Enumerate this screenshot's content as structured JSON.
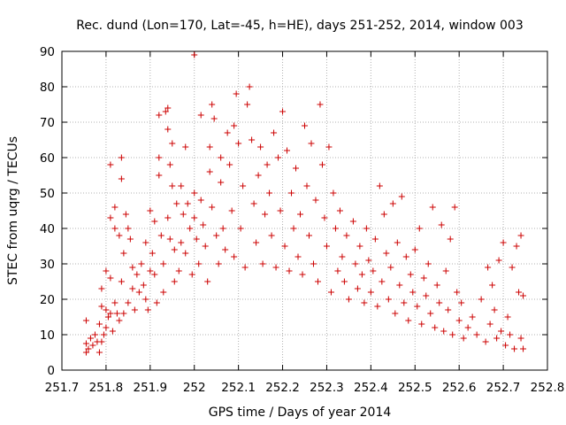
{
  "chart_data": {
    "type": "scatter",
    "title": "Rec. dund (Lon=170, Lat=-45, h=HE), days 251-252, 2014, window 003",
    "xlabel": "GPS time / Days of year 2014",
    "ylabel": "STEC from uqrg / TECUs",
    "xlim": [
      251.7,
      252.8
    ],
    "ylim": [
      0,
      90
    ],
    "xticks": [
      "251.7",
      "251.8",
      "251.9",
      "252",
      "252.1",
      "252.2",
      "252.3",
      "252.4",
      "252.5",
      "252.6",
      "252.7",
      "252.8"
    ],
    "yticks": [
      "0",
      "10",
      "20",
      "30",
      "40",
      "50",
      "60",
      "70",
      "80",
      "90"
    ],
    "grid": true,
    "marker": "+",
    "color": "#cc0000",
    "points": [
      [
        251.755,
        14
      ],
      [
        251.755,
        7.5
      ],
      [
        251.755,
        5
      ],
      [
        251.76,
        6
      ],
      [
        251.765,
        9
      ],
      [
        251.77,
        7
      ],
      [
        251.775,
        10
      ],
      [
        251.78,
        8
      ],
      [
        251.785,
        5
      ],
      [
        251.785,
        13
      ],
      [
        251.79,
        23
      ],
      [
        251.79,
        18
      ],
      [
        251.79,
        8
      ],
      [
        251.795,
        10
      ],
      [
        251.8,
        28
      ],
      [
        251.8,
        17
      ],
      [
        251.8,
        12
      ],
      [
        251.805,
        15
      ],
      [
        251.81,
        58
      ],
      [
        251.81,
        43
      ],
      [
        251.81,
        26
      ],
      [
        251.81,
        16
      ],
      [
        251.815,
        11
      ],
      [
        251.82,
        46
      ],
      [
        251.82,
        40
      ],
      [
        251.82,
        19
      ],
      [
        251.825,
        16
      ],
      [
        251.83,
        38
      ],
      [
        251.83,
        14
      ],
      [
        251.835,
        60
      ],
      [
        251.835,
        54
      ],
      [
        251.835,
        25
      ],
      [
        251.84,
        33
      ],
      [
        251.84,
        16
      ],
      [
        251.845,
        44
      ],
      [
        251.85,
        40
      ],
      [
        251.85,
        19
      ],
      [
        251.855,
        37
      ],
      [
        251.86,
        29
      ],
      [
        251.86,
        23
      ],
      [
        251.865,
        17
      ],
      [
        251.87,
        27
      ],
      [
        251.875,
        22
      ],
      [
        251.88,
        30
      ],
      [
        251.885,
        24
      ],
      [
        251.89,
        36
      ],
      [
        251.89,
        20
      ],
      [
        251.895,
        17
      ],
      [
        251.9,
        45
      ],
      [
        251.9,
        28
      ],
      [
        251.905,
        33
      ],
      [
        251.91,
        42
      ],
      [
        251.91,
        27
      ],
      [
        251.915,
        19
      ],
      [
        251.92,
        72
      ],
      [
        251.92,
        60
      ],
      [
        251.92,
        55
      ],
      [
        251.925,
        38
      ],
      [
        251.93,
        30
      ],
      [
        251.93,
        22
      ],
      [
        251.935,
        73
      ],
      [
        251.94,
        74
      ],
      [
        251.94,
        68
      ],
      [
        251.94,
        43
      ],
      [
        251.945,
        58
      ],
      [
        251.945,
        37
      ],
      [
        251.95,
        64
      ],
      [
        251.95,
        52
      ],
      [
        251.955,
        34
      ],
      [
        251.955,
        25
      ],
      [
        251.96,
        47
      ],
      [
        251.965,
        28
      ],
      [
        251.97,
        52
      ],
      [
        251.97,
        36
      ],
      [
        251.975,
        44
      ],
      [
        251.98,
        63
      ],
      [
        251.98,
        33
      ],
      [
        251.985,
        47
      ],
      [
        251.99,
        40
      ],
      [
        251.995,
        27
      ],
      [
        252.0,
        89
      ],
      [
        252.0,
        50
      ],
      [
        252.0,
        43
      ],
      [
        252.005,
        37
      ],
      [
        252.01,
        30
      ],
      [
        252.015,
        72
      ],
      [
        252.015,
        48
      ],
      [
        252.02,
        41
      ],
      [
        252.025,
        35
      ],
      [
        252.03,
        25
      ],
      [
        252.035,
        63
      ],
      [
        252.035,
        56
      ],
      [
        252.04,
        75
      ],
      [
        252.04,
        46
      ],
      [
        252.045,
        71
      ],
      [
        252.05,
        38
      ],
      [
        252.055,
        30
      ],
      [
        252.06,
        60
      ],
      [
        252.06,
        53
      ],
      [
        252.065,
        40
      ],
      [
        252.07,
        34
      ],
      [
        252.075,
        67
      ],
      [
        252.08,
        58
      ],
      [
        252.085,
        45
      ],
      [
        252.09,
        69
      ],
      [
        252.09,
        32
      ],
      [
        252.095,
        78
      ],
      [
        252.1,
        64
      ],
      [
        252.105,
        40
      ],
      [
        252.11,
        52
      ],
      [
        252.115,
        29
      ],
      [
        252.12,
        75
      ],
      [
        252.125,
        80
      ],
      [
        252.13,
        65
      ],
      [
        252.135,
        47
      ],
      [
        252.14,
        36
      ],
      [
        252.145,
        55
      ],
      [
        252.15,
        63
      ],
      [
        252.155,
        30
      ],
      [
        252.16,
        44
      ],
      [
        252.165,
        58
      ],
      [
        252.17,
        50
      ],
      [
        252.175,
        38
      ],
      [
        252.18,
        67
      ],
      [
        252.185,
        29
      ],
      [
        252.19,
        60
      ],
      [
        252.195,
        45
      ],
      [
        252.2,
        73
      ],
      [
        252.205,
        35
      ],
      [
        252.21,
        62
      ],
      [
        252.215,
        28
      ],
      [
        252.22,
        50
      ],
      [
        252.225,
        40
      ],
      [
        252.23,
        57
      ],
      [
        252.235,
        32
      ],
      [
        252.24,
        44
      ],
      [
        252.245,
        27
      ],
      [
        252.25,
        69
      ],
      [
        252.255,
        52
      ],
      [
        252.26,
        38
      ],
      [
        252.265,
        64
      ],
      [
        252.27,
        30
      ],
      [
        252.275,
        48
      ],
      [
        252.28,
        25
      ],
      [
        252.285,
        75
      ],
      [
        252.29,
        58
      ],
      [
        252.295,
        43
      ],
      [
        252.3,
        35
      ],
      [
        252.305,
        63
      ],
      [
        252.31,
        22
      ],
      [
        252.315,
        50
      ],
      [
        252.32,
        40
      ],
      [
        252.325,
        28
      ],
      [
        252.33,
        45
      ],
      [
        252.335,
        32
      ],
      [
        252.34,
        25
      ],
      [
        252.345,
        38
      ],
      [
        252.35,
        20
      ],
      [
        252.36,
        42
      ],
      [
        252.365,
        30
      ],
      [
        252.37,
        23
      ],
      [
        252.375,
        35
      ],
      [
        252.38,
        27
      ],
      [
        252.385,
        19
      ],
      [
        252.39,
        40
      ],
      [
        252.395,
        31
      ],
      [
        252.4,
        22
      ],
      [
        252.405,
        28
      ],
      [
        252.41,
        37
      ],
      [
        252.415,
        18
      ],
      [
        252.42,
        52
      ],
      [
        252.425,
        25
      ],
      [
        252.43,
        44
      ],
      [
        252.435,
        33
      ],
      [
        252.44,
        20
      ],
      [
        252.445,
        29
      ],
      [
        252.45,
        47
      ],
      [
        252.455,
        16
      ],
      [
        252.46,
        36
      ],
      [
        252.465,
        24
      ],
      [
        252.47,
        49
      ],
      [
        252.475,
        19
      ],
      [
        252.48,
        32
      ],
      [
        252.485,
        14
      ],
      [
        252.49,
        27
      ],
      [
        252.495,
        22
      ],
      [
        252.5,
        34
      ],
      [
        252.505,
        18
      ],
      [
        252.51,
        40
      ],
      [
        252.515,
        13
      ],
      [
        252.52,
        26
      ],
      [
        252.525,
        21
      ],
      [
        252.53,
        30
      ],
      [
        252.535,
        16
      ],
      [
        252.54,
        46
      ],
      [
        252.545,
        12
      ],
      [
        252.55,
        24
      ],
      [
        252.555,
        19
      ],
      [
        252.56,
        41
      ],
      [
        252.565,
        11
      ],
      [
        252.57,
        28
      ],
      [
        252.575,
        17
      ],
      [
        252.58,
        37
      ],
      [
        252.585,
        10
      ],
      [
        252.59,
        46
      ],
      [
        252.595,
        22
      ],
      [
        252.6,
        14
      ],
      [
        252.605,
        19
      ],
      [
        252.61,
        9
      ],
      [
        252.62,
        12
      ],
      [
        252.63,
        15
      ],
      [
        252.64,
        10
      ],
      [
        252.65,
        20
      ],
      [
        252.66,
        8
      ],
      [
        252.665,
        29
      ],
      [
        252.67,
        13
      ],
      [
        252.675,
        24
      ],
      [
        252.68,
        17
      ],
      [
        252.685,
        9
      ],
      [
        252.69,
        31
      ],
      [
        252.695,
        11
      ],
      [
        252.7,
        36
      ],
      [
        252.705,
        7
      ],
      [
        252.71,
        15
      ],
      [
        252.715,
        10
      ],
      [
        252.72,
        29
      ],
      [
        252.725,
        6
      ],
      [
        252.73,
        35
      ],
      [
        252.735,
        22
      ],
      [
        252.74,
        38
      ],
      [
        252.74,
        9
      ],
      [
        252.745,
        6
      ],
      [
        252.745,
        21
      ]
    ]
  }
}
